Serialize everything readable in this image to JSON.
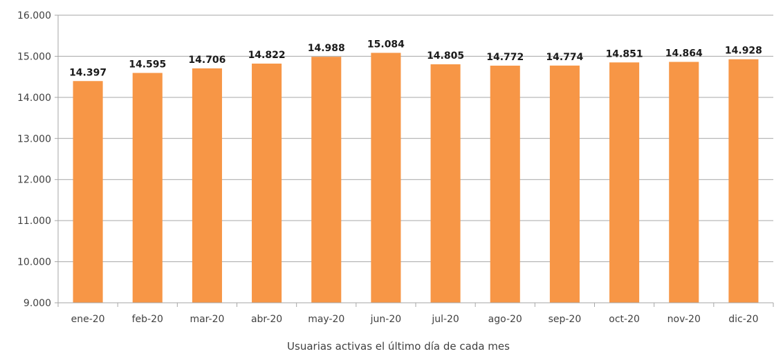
{
  "chart_data": {
    "type": "bar",
    "title": "",
    "xlabel": "Usuarias activas el último día de cada mes",
    "ylabel": "",
    "categories": [
      "ene-20",
      "feb-20",
      "mar-20",
      "abr-20",
      "may-20",
      "jun-20",
      "jul-20",
      "ago-20",
      "sep-20",
      "oct-20",
      "nov-20",
      "dic-20"
    ],
    "values": [
      14397,
      14595,
      14706,
      14822,
      14988,
      15084,
      14805,
      14772,
      14774,
      14851,
      14864,
      14928
    ],
    "value_labels": [
      "14.397",
      "14.595",
      "14.706",
      "14.822",
      "14.988",
      "15.084",
      "14.805",
      "14.772",
      "14.774",
      "14.851",
      "14.864",
      "14.928"
    ],
    "ylim": [
      9000,
      16000
    ],
    "yticks": [
      9000,
      10000,
      11000,
      12000,
      13000,
      14000,
      15000,
      16000
    ],
    "ytick_labels": [
      "9.000",
      "10.000",
      "11.000",
      "12.000",
      "13.000",
      "14.000",
      "15.000",
      "16.000"
    ],
    "grid": true,
    "legend": "none",
    "colors": {
      "bar": "#F79646",
      "grid": "#a6a6a6",
      "axis": "#a6a6a6"
    }
  }
}
